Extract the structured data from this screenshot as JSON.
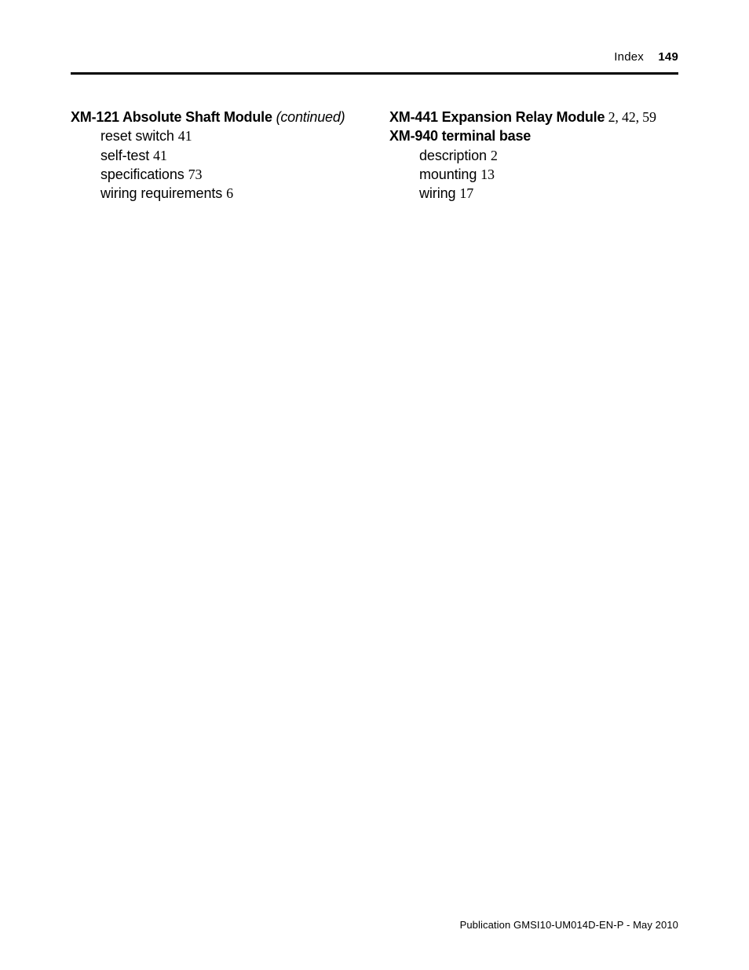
{
  "header": {
    "section": "Index",
    "page_number": "149"
  },
  "left_column": {
    "main": {
      "title": "XM-121 Absolute Shaft Module",
      "suffix_open": " (",
      "suffix_word": "continued",
      "suffix_close": ")"
    },
    "subs": [
      {
        "label": "reset switch",
        "page": "41"
      },
      {
        "label": "self-test",
        "page": "41"
      },
      {
        "label": "specifications",
        "page": "73"
      },
      {
        "label": "wiring requirements",
        "page": "6"
      }
    ]
  },
  "right_column": {
    "main": {
      "title": "XM-441 Expansion Relay Module",
      "pages": " 2, 42, 59"
    },
    "second": {
      "title": "XM-940 terminal base"
    },
    "subs": [
      {
        "label": "description",
        "page": "2"
      },
      {
        "label": "mounting",
        "page": "13"
      },
      {
        "label": "wiring",
        "page": "17"
      }
    ]
  },
  "footer": {
    "text": "Publication GMSI10-UM014D-EN-P - May 2010"
  }
}
